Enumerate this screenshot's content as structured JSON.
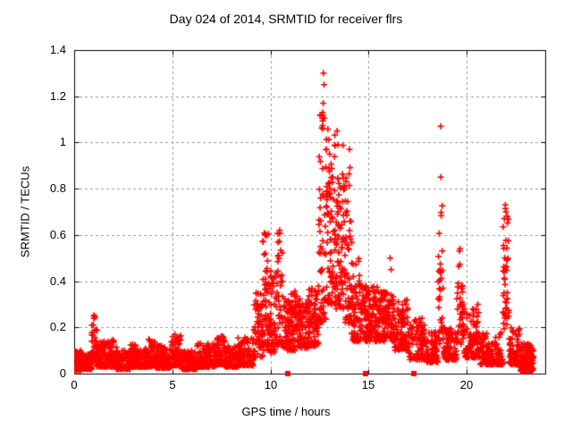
{
  "chart_data": {
    "type": "scatter",
    "title": "Day 024 of 2014, SRMTID for receiver flrs",
    "xlabel": "GPS time / hours",
    "ylabel": "SRMTID / TECUs",
    "xlim": [
      0,
      24
    ],
    "ylim": [
      0,
      1.4
    ],
    "xticks": [
      0,
      5,
      10,
      15,
      20
    ],
    "xtick_labels": [
      "0",
      "5",
      "10",
      "15",
      "20"
    ],
    "yticks": [
      0,
      0.2,
      0.4,
      0.6,
      0.8,
      1,
      1.2,
      1.4
    ],
    "ytick_labels": [
      "0",
      "0.2",
      "0.4",
      "0.6",
      "0.8",
      "1",
      "1.2",
      "1.4"
    ],
    "grid": true,
    "legend": "none",
    "background_color": "#ffffff",
    "grid_color": "#999999",
    "axis_color": "#000000",
    "series": [
      {
        "name": "srmtid-scatter",
        "marker": "plus",
        "color": "#ff0000",
        "bands_format": [
          "x_start_hours",
          "x_end_hours",
          "point_count",
          "y_min_TECUs",
          "y_max_TECUs",
          "low_bias_skew"
        ],
        "bands": [
          [
            0.0,
            0.35,
            55,
            0.015,
            0.1,
            2.2
          ],
          [
            0.35,
            0.9,
            90,
            0.02,
            0.09,
            2.2
          ],
          [
            0.9,
            1.15,
            45,
            0.05,
            0.26,
            1.6
          ],
          [
            1.15,
            1.75,
            85,
            0.03,
            0.14,
            2.2
          ],
          [
            1.75,
            2.15,
            60,
            0.03,
            0.15,
            2.0
          ],
          [
            2.15,
            2.85,
            100,
            0.02,
            0.1,
            2.2
          ],
          [
            2.85,
            3.2,
            55,
            0.03,
            0.14,
            2.0
          ],
          [
            3.2,
            3.75,
            80,
            0.03,
            0.11,
            2.2
          ],
          [
            3.75,
            4.15,
            60,
            0.03,
            0.15,
            2.0
          ],
          [
            4.15,
            4.95,
            110,
            0.025,
            0.12,
            2.2
          ],
          [
            4.95,
            5.45,
            70,
            0.035,
            0.17,
            2.0
          ],
          [
            5.45,
            6.25,
            110,
            0.02,
            0.1,
            2.2
          ],
          [
            6.25,
            7.25,
            130,
            0.03,
            0.13,
            2.2
          ],
          [
            7.25,
            7.65,
            60,
            0.04,
            0.17,
            2.0
          ],
          [
            7.65,
            8.35,
            90,
            0.03,
            0.12,
            2.2
          ],
          [
            8.35,
            9.15,
            110,
            0.035,
            0.16,
            2.2
          ],
          [
            9.15,
            9.6,
            55,
            0.07,
            0.35,
            1.5
          ],
          [
            9.6,
            9.95,
            55,
            0.1,
            0.61,
            1.7
          ],
          [
            9.95,
            10.3,
            50,
            0.09,
            0.45,
            1.6
          ],
          [
            10.3,
            10.65,
            50,
            0.12,
            0.62,
            1.7
          ],
          [
            10.65,
            11.35,
            95,
            0.1,
            0.36,
            1.5
          ],
          [
            11.35,
            11.95,
            80,
            0.11,
            0.33,
            1.4
          ],
          [
            11.95,
            12.45,
            75,
            0.12,
            0.38,
            1.5
          ],
          [
            12.45,
            12.85,
            70,
            0.22,
            1.12,
            1.6
          ],
          [
            12.85,
            13.3,
            80,
            0.3,
            1.08,
            1.4
          ],
          [
            13.3,
            13.75,
            70,
            0.28,
            1.0,
            1.5
          ],
          [
            13.75,
            14.15,
            60,
            0.22,
            0.93,
            1.7
          ],
          [
            14.15,
            14.6,
            70,
            0.14,
            0.5,
            1.6
          ],
          [
            14.6,
            15.45,
            120,
            0.14,
            0.38,
            1.3
          ],
          [
            15.45,
            16.3,
            115,
            0.14,
            0.36,
            1.3
          ],
          [
            16.3,
            17.05,
            95,
            0.1,
            0.32,
            1.5
          ],
          [
            17.05,
            17.9,
            95,
            0.06,
            0.24,
            1.8
          ],
          [
            17.9,
            18.55,
            80,
            0.05,
            0.18,
            1.9
          ],
          [
            18.55,
            18.8,
            35,
            0.12,
            0.75,
            1.5
          ],
          [
            18.8,
            19.5,
            85,
            0.06,
            0.2,
            2.0
          ],
          [
            19.5,
            19.85,
            40,
            0.12,
            0.55,
            1.5
          ],
          [
            19.85,
            20.65,
            95,
            0.07,
            0.3,
            1.9
          ],
          [
            20.65,
            21.85,
            130,
            0.04,
            0.18,
            2.1
          ],
          [
            21.85,
            22.15,
            45,
            0.18,
            0.72,
            1.5
          ],
          [
            22.15,
            22.7,
            70,
            0.04,
            0.2,
            2.0
          ],
          [
            22.7,
            23.4,
            130,
            0.01,
            0.13,
            1.8
          ]
        ],
        "peak_points": [
          [
            1.0,
            0.25
          ],
          [
            9.72,
            0.6
          ],
          [
            10.47,
            0.62
          ],
          [
            12.7,
            1.3
          ],
          [
            12.73,
            1.25
          ],
          [
            12.69,
            1.17
          ],
          [
            12.66,
            1.13
          ],
          [
            13.4,
            1.05
          ],
          [
            13.44,
            0.99
          ],
          [
            14.03,
            0.97
          ],
          [
            16.1,
            0.5
          ],
          [
            16.15,
            0.45
          ],
          [
            18.68,
            1.07
          ],
          [
            18.68,
            0.85
          ],
          [
            19.66,
            0.54
          ],
          [
            21.97,
            0.73
          ],
          [
            22.0,
            0.7
          ]
        ]
      },
      {
        "name": "flagged-times",
        "marker": "filled-square",
        "color": "#ff0000",
        "points": [
          [
            10.9,
            0
          ],
          [
            14.85,
            0
          ],
          [
            17.3,
            0
          ]
        ]
      }
    ]
  }
}
